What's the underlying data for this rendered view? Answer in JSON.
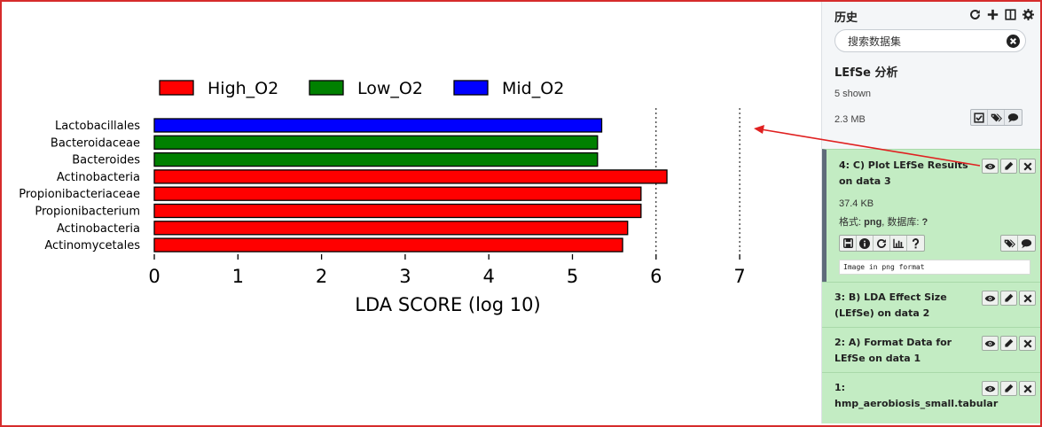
{
  "chart_data": {
    "type": "bar",
    "orientation": "horizontal",
    "title": "",
    "xlabel": "LDA SCORE (log 10)",
    "ylabel": "",
    "xlim": [
      0,
      7
    ],
    "xticks": [
      0,
      1,
      2,
      3,
      4,
      5,
      6,
      7
    ],
    "grid": "vertical dotted",
    "legend_position": "top",
    "legend": [
      {
        "name": "High_O2",
        "color": "#ff0000"
      },
      {
        "name": "Low_O2",
        "color": "#008000"
      },
      {
        "name": "Mid_O2",
        "color": "#0000ff"
      }
    ],
    "categories": [
      "Lactobacillales",
      "Bacteroidaceae",
      "Bacteroides",
      "Actinobacteria",
      "Propionibacteriaceae",
      "Propionibacterium",
      "Actinobacteria",
      "Actinomycetales"
    ],
    "values": [
      5.35,
      5.3,
      5.3,
      6.13,
      5.82,
      5.82,
      5.66,
      5.6
    ],
    "groups": [
      "Mid_O2",
      "Low_O2",
      "Low_O2",
      "High_O2",
      "High_O2",
      "High_O2",
      "High_O2",
      "High_O2"
    ]
  },
  "panel": {
    "title": "历史",
    "icons": [
      "refresh-icon",
      "plus-icon",
      "columns-icon",
      "gear-icon"
    ],
    "search_placeholder": "搜索数据集",
    "history_name": "LEfSe 分析",
    "shown": "5 shown",
    "size": "2.3 MB",
    "datasets": [
      {
        "title": "4: C) Plot LEfSe Results on data 3",
        "size": "37.4 KB",
        "format_label": "格式: ",
        "format": "png",
        "db_label": ", 数据库: ",
        "db": "?",
        "peek": "Image in png format"
      },
      {
        "title": "3: B) LDA Effect Size (LEfSe) on data 2"
      },
      {
        "title": "2: A) Format Data for LEfSe on data 1"
      },
      {
        "title": "1: hmp_aerobiosis_small.tabular"
      }
    ]
  }
}
